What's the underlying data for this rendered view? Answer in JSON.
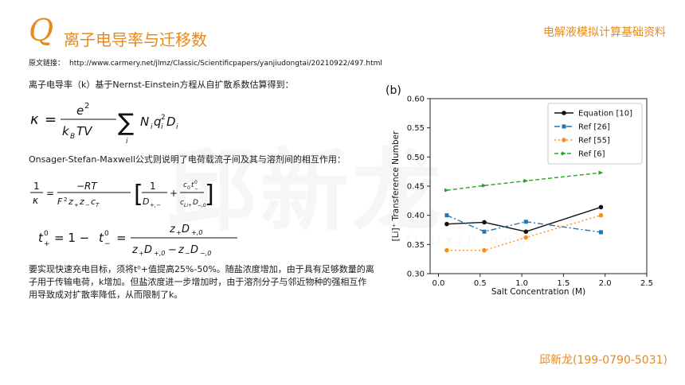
{
  "header": {
    "logo_glyph": "Q",
    "title": "离子电导率与迁移数",
    "series_title": "电解液模拟计算基础资料"
  },
  "source": {
    "label": "原文链接：",
    "url": "http://www.carmery.net/jlmz/Classic/Scientificpapers/yanjiudongtai/20210922/497.html"
  },
  "body": {
    "intro": "离子电导率（k）基于Nernst-Einstein方程从自扩散系数估算得到：",
    "onsager": "Onsager-Stefan-Maxwell公式则说明了电荷载流子间及其与溶剂间的相互作用：",
    "conclusion": "要实现快速充电目标，须将t⁰+值提高25%-50%。随盐浓度增加，由于具有足够数量的离子用于传输电荷，k增加。但盐浓度进一步增加时，由于溶剂分子与邻近物种的强相互作用导致成对扩散率降低，从而限制了k。"
  },
  "watermark": {
    "text": "邱新龙",
    "sub": "Qiuxinlong"
  },
  "footer": {
    "contact": "邱新龙(199-0790-5031)"
  },
  "chart_data": {
    "type": "line",
    "panel_label": "(b)",
    "xlabel": "Salt Concentration (M)",
    "ylabel": "[Li]⁺ Transference Number",
    "xlim": [
      -0.1,
      2.5
    ],
    "ylim": [
      0.3,
      0.6
    ],
    "xticks": [
      "0.0",
      "0.5",
      "1.0",
      "1.5",
      "2.0",
      "2.5"
    ],
    "xtick_values": [
      0.0,
      0.5,
      1.0,
      1.5,
      2.0,
      2.5
    ],
    "yticks": [
      "0.30",
      "0.35",
      "0.40",
      "0.45",
      "0.50",
      "0.55",
      "0.60"
    ],
    "ytick_values": [
      0.3,
      0.35,
      0.4,
      0.45,
      0.5,
      0.55,
      0.6
    ],
    "legend_position": "top-right",
    "grid": false,
    "series": [
      {
        "name": "Equation [10]",
        "color": "#111111",
        "dash": "",
        "marker": "circle",
        "x": [
          0.1,
          0.55,
          1.05,
          1.95
        ],
        "y": [
          0.385,
          0.388,
          0.372,
          0.414
        ]
      },
      {
        "name": "Ref [26]",
        "color": "#1f77b4",
        "dash": "7 3 2 3",
        "marker": "square",
        "x": [
          0.1,
          0.55,
          1.05,
          1.95
        ],
        "y": [
          0.4,
          0.372,
          0.389,
          0.371
        ]
      },
      {
        "name": "Ref [55]",
        "color": "#ff8c1a",
        "dash": "2 3",
        "marker": "circle",
        "x": [
          0.1,
          0.55,
          1.05,
          1.95
        ],
        "y": [
          0.34,
          0.34,
          0.362,
          0.4
        ]
      },
      {
        "name": "Ref [6]",
        "color": "#2ca02c",
        "dash": "5 3",
        "marker": "triangle",
        "x": [
          0.1,
          0.55,
          1.05,
          1.95
        ],
        "y": [
          0.443,
          0.451,
          0.459,
          0.473
        ]
      }
    ]
  }
}
